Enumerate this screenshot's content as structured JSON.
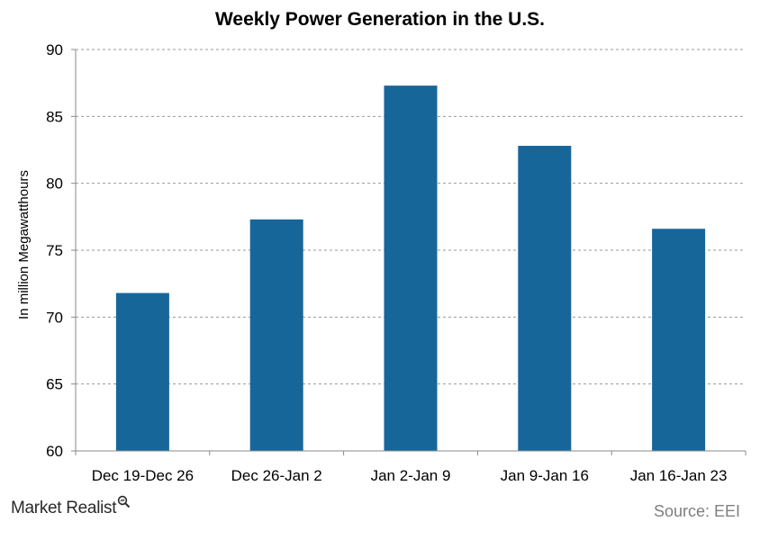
{
  "chart_data": {
    "type": "bar",
    "title": "Weekly Power Generation  in the U.S.",
    "xlabel": "",
    "ylabel": "In million Megawatthours",
    "categories": [
      "Dec 19-Dec 26",
      "Dec 26-Jan 2",
      "Jan 2-Jan 9",
      "Jan 9-Jan 16",
      "Jan 16-Jan 23"
    ],
    "values": [
      71.8,
      77.3,
      87.3,
      82.8,
      76.6
    ],
    "ylim": [
      60,
      90
    ],
    "yticks": [
      60,
      65,
      70,
      75,
      80,
      85,
      90
    ],
    "grid": true,
    "bar_color": "#17669A",
    "grid_color": "#999999"
  },
  "footer": {
    "brand": "Market Realist",
    "source": "Source: EEI"
  }
}
